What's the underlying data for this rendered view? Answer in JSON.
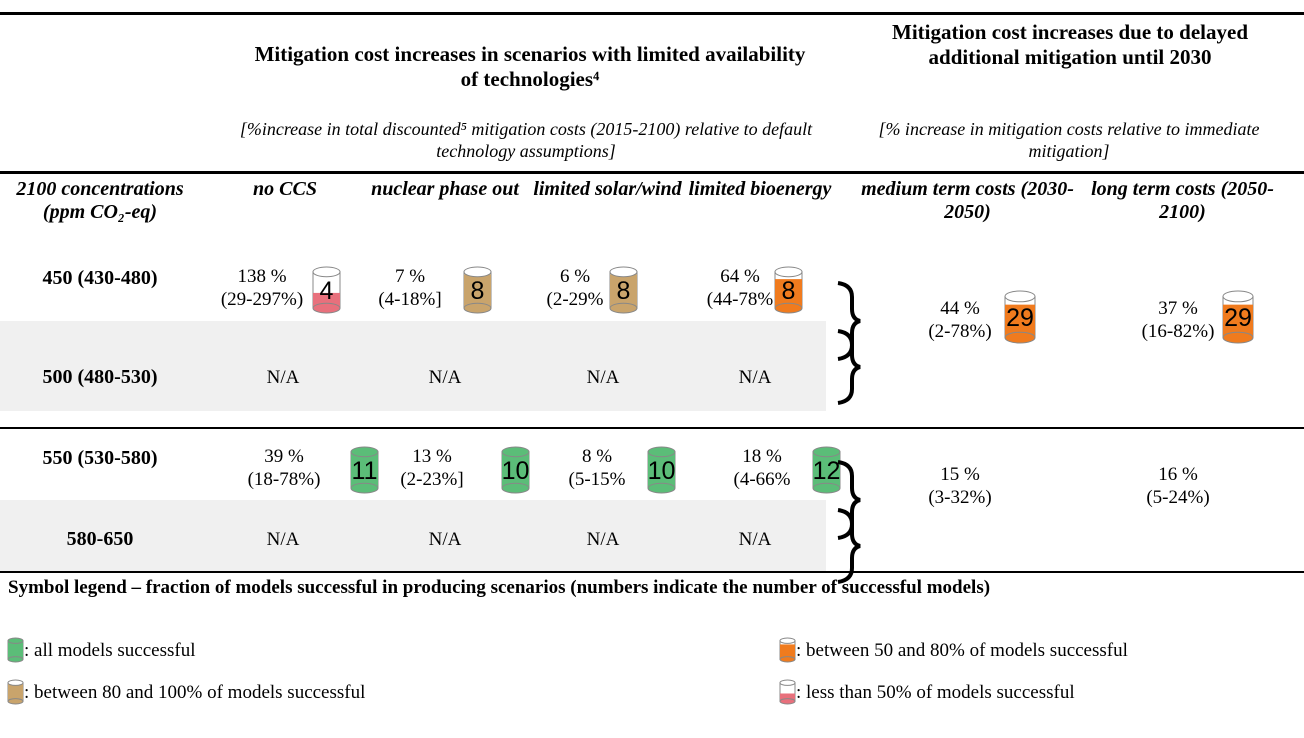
{
  "header": {
    "technologies": {
      "title": "Mitigation cost increases in scenarios with limited availability of technologies⁴",
      "subtitle": "[%increase in total discounted⁵ mitigation costs (2015-2100) relative to default technology assumptions]"
    },
    "delayed": {
      "title": "Mitigation cost increases due to delayed additional mitigation until 2030",
      "subtitle": "[% increase in mitigation costs relative to immediate mitigation]"
    }
  },
  "columns": [
    "2100 concentrations (ppm CO₂-eq)",
    "no CCS",
    "nuclear phase out",
    "limited solar/wind",
    "limited bioenergy",
    "medium term costs (2030-2050)",
    "long term costs (2050-2100)"
  ],
  "groups": [
    {
      "rows": [
        {
          "label": "450 (430-480)",
          "cells": [
            {
              "value": "138 %",
              "range": "(29-297%)",
              "models": "4",
              "color": "#e8707c"
            },
            {
              "value": "7 %",
              "range": "(4-18%]",
              "models": "8",
              "color": "#c9a46c"
            },
            {
              "value": "6 %",
              "range": "(2-29%",
              "models": "8",
              "color": "#c9a46c"
            },
            {
              "value": "64 %",
              "range": "(44-78%",
              "models": "8",
              "color": "#f07b1e"
            }
          ]
        },
        {
          "label": "500 (480-530)",
          "cells": [
            "N/A",
            "N/A",
            "N/A",
            "N/A"
          ]
        }
      ],
      "delayed": [
        {
          "value": "44 %",
          "range": "(2-78%)",
          "models": "29",
          "color": "#f07b1e"
        },
        {
          "value": "37 %",
          "range": "(16-82%)",
          "models": "29",
          "color": "#f07b1e"
        }
      ]
    },
    {
      "rows": [
        {
          "label": "550 (530-580)",
          "cells": [
            {
              "value": "39 %",
              "range": "(18-78%)",
              "models": "11",
              "color": "#5bbd78"
            },
            {
              "value": "13 %",
              "range": "(2-23%]",
              "models": "10",
              "color": "#5bbd78"
            },
            {
              "value": "8 %",
              "range": "(5-15%",
              "models": "10",
              "color": "#5bbd78"
            },
            {
              "value": "18 %",
              "range": "(4-66%",
              "models": "12",
              "color": "#5bbd78"
            }
          ]
        },
        {
          "label": "580-650",
          "cells": [
            "N/A",
            "N/A",
            "N/A",
            "N/A"
          ]
        }
      ],
      "delayed": [
        {
          "value": "15 %",
          "range": "(3-32%)"
        },
        {
          "value": "16 %",
          "range": "(5-24%)"
        }
      ]
    }
  ],
  "legend": {
    "title": "Symbol legend – fraction of models successful in producing scenarios (numbers indicate the number of successful models)",
    "items": [
      {
        "label": ": all models successful",
        "color": "#5bbd78"
      },
      {
        "label": ": between 80 and 100% of models successful",
        "color": "#c9a46c"
      },
      {
        "label": ": between 50 and 80% of models successful",
        "color": "#f07b1e"
      },
      {
        "label": ": less than 50% of models successful",
        "color": "#e8707c"
      }
    ]
  }
}
